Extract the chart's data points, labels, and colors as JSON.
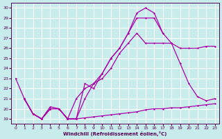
{
  "xlabel": "Windchill (Refroidissement éolien,°C)",
  "bg_color": "#c8ecec",
  "grid_color": "#ffffff",
  "line_color": "#aa00aa",
  "xlim": [
    -0.5,
    23.5
  ],
  "ylim": [
    18.5,
    30.5
  ],
  "xticks": [
    0,
    1,
    2,
    3,
    4,
    5,
    6,
    7,
    8,
    9,
    10,
    11,
    12,
    13,
    14,
    15,
    16,
    17,
    18,
    19,
    20,
    21,
    22,
    23
  ],
  "yticks": [
    19,
    20,
    21,
    22,
    23,
    24,
    25,
    26,
    27,
    28,
    29,
    30
  ],
  "line1_x": [
    0,
    1,
    2,
    3,
    4,
    5,
    6,
    7,
    8,
    9,
    10,
    11,
    12,
    13,
    14,
    15,
    16,
    17
  ],
  "line1_y": [
    23,
    21,
    19.5,
    19,
    20,
    20,
    19,
    19,
    22.5,
    22,
    23.5,
    25,
    26,
    27.5,
    29.5,
    30,
    29.5,
    27.5
  ],
  "line2_x": [
    1,
    2,
    3,
    4,
    5,
    6,
    7,
    8,
    9,
    10,
    11,
    12,
    13,
    14,
    15,
    16,
    17,
    18,
    19,
    20,
    21,
    22,
    23
  ],
  "line2_y": [
    21,
    19.5,
    19,
    20,
    20,
    19,
    19,
    21,
    22.5,
    23.5,
    25,
    26,
    27.5,
    29,
    29,
    29,
    27.5,
    26.5,
    26,
    26,
    26,
    26.2,
    26.2
  ],
  "line3_x": [
    1,
    2,
    3,
    4,
    5,
    6,
    7,
    8,
    9,
    10,
    11,
    12,
    13,
    14,
    15,
    16,
    17,
    18,
    19,
    20,
    21,
    22,
    23
  ],
  "line3_y": [
    21,
    19.5,
    19,
    20,
    20,
    19,
    21,
    22,
    22.5,
    23,
    24,
    25.5,
    26.5,
    27.5,
    26.5,
    26.5,
    26.5,
    26.5,
    24.5,
    22.5,
    21.2,
    20.8,
    21.0
  ],
  "line4_x": [
    1,
    2,
    3,
    4,
    5,
    6,
    7,
    8,
    9,
    10,
    11,
    12,
    13,
    14,
    15,
    16,
    17,
    18,
    19,
    20,
    21,
    22,
    23
  ],
  "line4_y": [
    21,
    19.5,
    19,
    20.2,
    20,
    19,
    19,
    19.1,
    19.2,
    19.3,
    19.4,
    19.5,
    19.6,
    19.7,
    19.9,
    20.0,
    20.0,
    20.1,
    20.1,
    20.2,
    20.3,
    20.4,
    20.5
  ]
}
